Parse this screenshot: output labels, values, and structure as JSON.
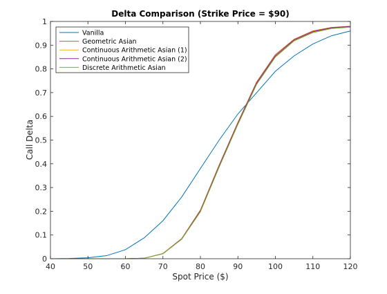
{
  "chart_data": {
    "type": "line",
    "title": "Delta Comparison (Strike Price = $90)",
    "xlabel": "Spot Price ($)",
    "ylabel": "Call Delta",
    "xlim": [
      40,
      120
    ],
    "ylim": [
      0,
      1
    ],
    "x_ticks": [
      40,
      50,
      60,
      70,
      80,
      90,
      100,
      110,
      120
    ],
    "y_ticks": [
      0,
      0.1,
      0.2,
      0.3,
      0.4,
      0.5,
      0.6,
      0.7,
      0.8,
      0.9,
      1
    ],
    "x_tick_labels": [
      "40",
      "50",
      "60",
      "70",
      "80",
      "90",
      "100",
      "110",
      "120"
    ],
    "y_tick_labels": [
      "0",
      "0.1",
      "0.2",
      "0.3",
      "0.4",
      "0.5",
      "0.6",
      "0.7",
      "0.8",
      "0.9",
      "1"
    ],
    "grid": false,
    "legend_position": "top-left",
    "x": [
      40,
      45,
      50,
      55,
      60,
      65,
      70,
      75,
      80,
      85,
      90,
      95,
      100,
      105,
      110,
      115,
      120
    ],
    "series": [
      {
        "name": "Vanilla",
        "color": "#0072BD",
        "values": [
          0.0,
          0.001,
          0.004,
          0.013,
          0.038,
          0.088,
          0.16,
          0.26,
          0.38,
          0.5,
          0.61,
          0.7,
          0.79,
          0.855,
          0.905,
          0.94,
          0.96
        ]
      },
      {
        "name": "Geometric Asian",
        "color": "#D95319",
        "values": [
          0.0,
          0.0,
          0.0,
          0.0,
          0.0,
          0.002,
          0.022,
          0.085,
          0.205,
          0.395,
          0.575,
          0.745,
          0.86,
          0.925,
          0.96,
          0.975,
          0.98
        ]
      },
      {
        "name": "Continuous Arithmetic Asian (1)",
        "color": "#EDB120",
        "values": [
          0.0,
          0.0,
          0.0,
          0.0,
          0.0,
          0.002,
          0.021,
          0.083,
          0.2,
          0.388,
          0.568,
          0.737,
          0.852,
          0.92,
          0.955,
          0.972,
          0.978
        ]
      },
      {
        "name": "Continuous Arithmetic Asian (2)",
        "color": "#7E2F8E",
        "values": [
          0.0,
          0.0,
          0.0,
          0.0,
          0.0,
          0.002,
          0.021,
          0.083,
          0.201,
          0.39,
          0.57,
          0.74,
          0.855,
          0.922,
          0.957,
          0.973,
          0.979
        ]
      },
      {
        "name": "Discrete Arithmetic Asian",
        "color": "#77AC30",
        "values": [
          0.0,
          0.0,
          0.0,
          0.0,
          0.0,
          0.002,
          0.021,
          0.082,
          0.198,
          0.386,
          0.566,
          0.735,
          0.85,
          0.918,
          0.953,
          0.97,
          0.976
        ]
      }
    ]
  }
}
